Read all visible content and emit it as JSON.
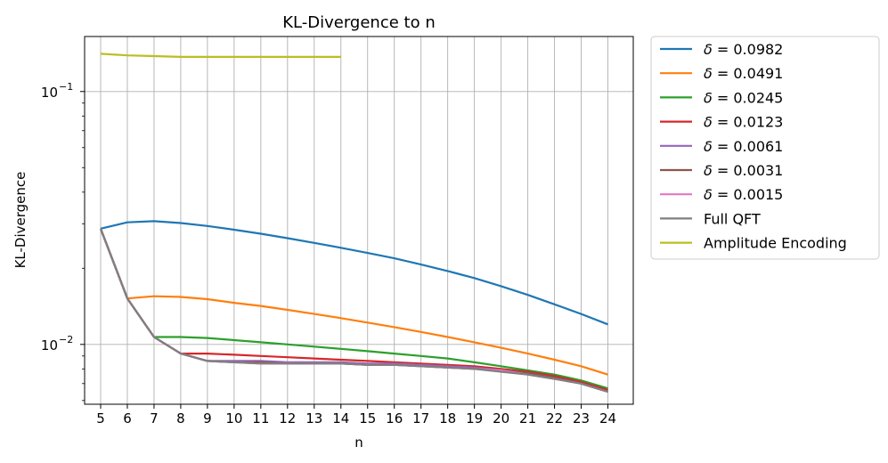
{
  "chart_data": {
    "type": "line",
    "title": "KL-Divergence to n",
    "xlabel": "n",
    "ylabel": "KL-Divergence",
    "yscale": "log",
    "ylim": [
      0.0058,
      0.165
    ],
    "xlim": [
      4.4,
      24.95
    ],
    "xticks": [
      "5",
      "6",
      "7",
      "8",
      "9",
      "10",
      "11",
      "12",
      "13",
      "14",
      "15",
      "16",
      "17",
      "18",
      "19",
      "20",
      "21",
      "22",
      "23",
      "24"
    ],
    "ytick_labels": [
      {
        "value": 0.01,
        "base": "10",
        "exp": "−2"
      },
      {
        "value": 0.1,
        "base": "10",
        "exp": "−1"
      }
    ],
    "grid": true,
    "legend_position": "outside-right-top",
    "series": [
      {
        "name": "δ = 0.0982",
        "symbol": "δ",
        "num": "0.0982",
        "color": "#1f77b4",
        "x": [
          5,
          6,
          7,
          8,
          9,
          10,
          11,
          12,
          13,
          14,
          15,
          16,
          17,
          18,
          19,
          20,
          21,
          22,
          23,
          24
        ],
        "y": [
          0.0287,
          0.0304,
          0.0307,
          0.0302,
          0.0294,
          0.0284,
          0.0274,
          0.0263,
          0.0252,
          0.0241,
          0.023,
          0.0219,
          0.0207,
          0.0195,
          0.0183,
          0.017,
          0.0157,
          0.0144,
          0.0132,
          0.012
        ]
      },
      {
        "name": "δ = 0.0491",
        "symbol": "δ",
        "num": "0.0491",
        "color": "#ff7f0e",
        "x": [
          5,
          6,
          7,
          8,
          9,
          10,
          11,
          12,
          13,
          14,
          15,
          16,
          17,
          18,
          19,
          20,
          21,
          22,
          23,
          24
        ],
        "y": [
          0.0287,
          0.0152,
          0.0155,
          0.0154,
          0.0151,
          0.0146,
          0.0142,
          0.0137,
          0.0132,
          0.0127,
          0.0122,
          0.0117,
          0.0112,
          0.0107,
          0.0102,
          0.0097,
          0.0092,
          0.0087,
          0.0082,
          0.0076
        ]
      },
      {
        "name": "δ = 0.0245",
        "symbol": "δ",
        "num": "0.0245",
        "color": "#2ca02c",
        "x": [
          5,
          6,
          7,
          8,
          9,
          10,
          11,
          12,
          13,
          14,
          15,
          16,
          17,
          18,
          19,
          20,
          21,
          22,
          23,
          24
        ],
        "y": [
          0.0287,
          0.0152,
          0.0107,
          0.0107,
          0.0106,
          0.0104,
          0.0102,
          0.01,
          0.0098,
          0.0096,
          0.0094,
          0.0092,
          0.009,
          0.0088,
          0.0085,
          0.0082,
          0.0079,
          0.0076,
          0.0072,
          0.0067
        ]
      },
      {
        "name": "δ = 0.0123",
        "symbol": "δ",
        "num": "0.0123",
        "color": "#d62728",
        "x": [
          5,
          6,
          7,
          8,
          9,
          10,
          11,
          12,
          13,
          14,
          15,
          16,
          17,
          18,
          19,
          20,
          21,
          22,
          23,
          24
        ],
        "y": [
          0.0287,
          0.0152,
          0.0107,
          0.0092,
          0.0092,
          0.0091,
          0.009,
          0.0089,
          0.0088,
          0.0087,
          0.0086,
          0.0085,
          0.0084,
          0.0083,
          0.0082,
          0.008,
          0.0078,
          0.0075,
          0.0071,
          0.0066
        ]
      },
      {
        "name": "δ = 0.0061",
        "symbol": "δ",
        "num": "0.0061",
        "color": "#9467bd",
        "x": [
          5,
          6,
          7,
          8,
          9,
          10,
          11,
          12,
          13,
          14,
          15,
          16,
          17,
          18,
          19,
          20,
          21,
          22,
          23,
          24
        ],
        "y": [
          0.0287,
          0.0152,
          0.0107,
          0.0092,
          0.0086,
          0.0086,
          0.0086,
          0.0085,
          0.0085,
          0.0085,
          0.0084,
          0.0084,
          0.0083,
          0.0082,
          0.0081,
          0.0079,
          0.0077,
          0.0074,
          0.007,
          0.0065
        ]
      },
      {
        "name": "δ = 0.0031",
        "symbol": "δ",
        "num": "0.0031",
        "color": "#8c564b",
        "x": [
          5,
          6,
          7,
          8,
          9,
          10,
          11,
          12,
          13,
          14,
          15,
          16,
          17,
          18,
          19,
          20,
          21,
          22,
          23,
          24
        ],
        "y": [
          0.0287,
          0.0152,
          0.0107,
          0.0092,
          0.0086,
          0.0085,
          0.0085,
          0.0084,
          0.0084,
          0.0084,
          0.0083,
          0.0083,
          0.0082,
          0.0081,
          0.008,
          0.0079,
          0.0077,
          0.0074,
          0.007,
          0.0065
        ]
      },
      {
        "name": "δ = 0.0015",
        "symbol": "δ",
        "num": "0.0015",
        "color": "#e377c2",
        "x": [
          5,
          6,
          7,
          8,
          9,
          10,
          11,
          12,
          13,
          14,
          15,
          16,
          17,
          18,
          19,
          20,
          21,
          22,
          23,
          24
        ],
        "y": [
          0.0287,
          0.0152,
          0.0107,
          0.0092,
          0.0086,
          0.0085,
          0.0084,
          0.0084,
          0.0084,
          0.0084,
          0.0083,
          0.0083,
          0.0082,
          0.0081,
          0.008,
          0.0079,
          0.0076,
          0.0073,
          0.007,
          0.0065
        ]
      },
      {
        "name": "Full QFT",
        "color": "#7f7f7f",
        "x": [
          5,
          6,
          7,
          8,
          9,
          10,
          11,
          12,
          13,
          14,
          15,
          16,
          17,
          18,
          19,
          20,
          21,
          22,
          23,
          24
        ],
        "y": [
          0.0287,
          0.0152,
          0.0107,
          0.0092,
          0.0086,
          0.0085,
          0.0084,
          0.0084,
          0.0084,
          0.0084,
          0.0083,
          0.0083,
          0.0082,
          0.0081,
          0.008,
          0.0078,
          0.0076,
          0.0073,
          0.007,
          0.0065
        ]
      },
      {
        "name": "Amplitude Encoding",
        "color": "#bcbd22",
        "x": [
          5,
          6,
          7,
          8,
          9,
          10,
          11,
          12,
          13,
          14
        ],
        "y": [
          0.141,
          0.139,
          0.138,
          0.137,
          0.137,
          0.137,
          0.137,
          0.137,
          0.137,
          0.137
        ]
      }
    ]
  }
}
